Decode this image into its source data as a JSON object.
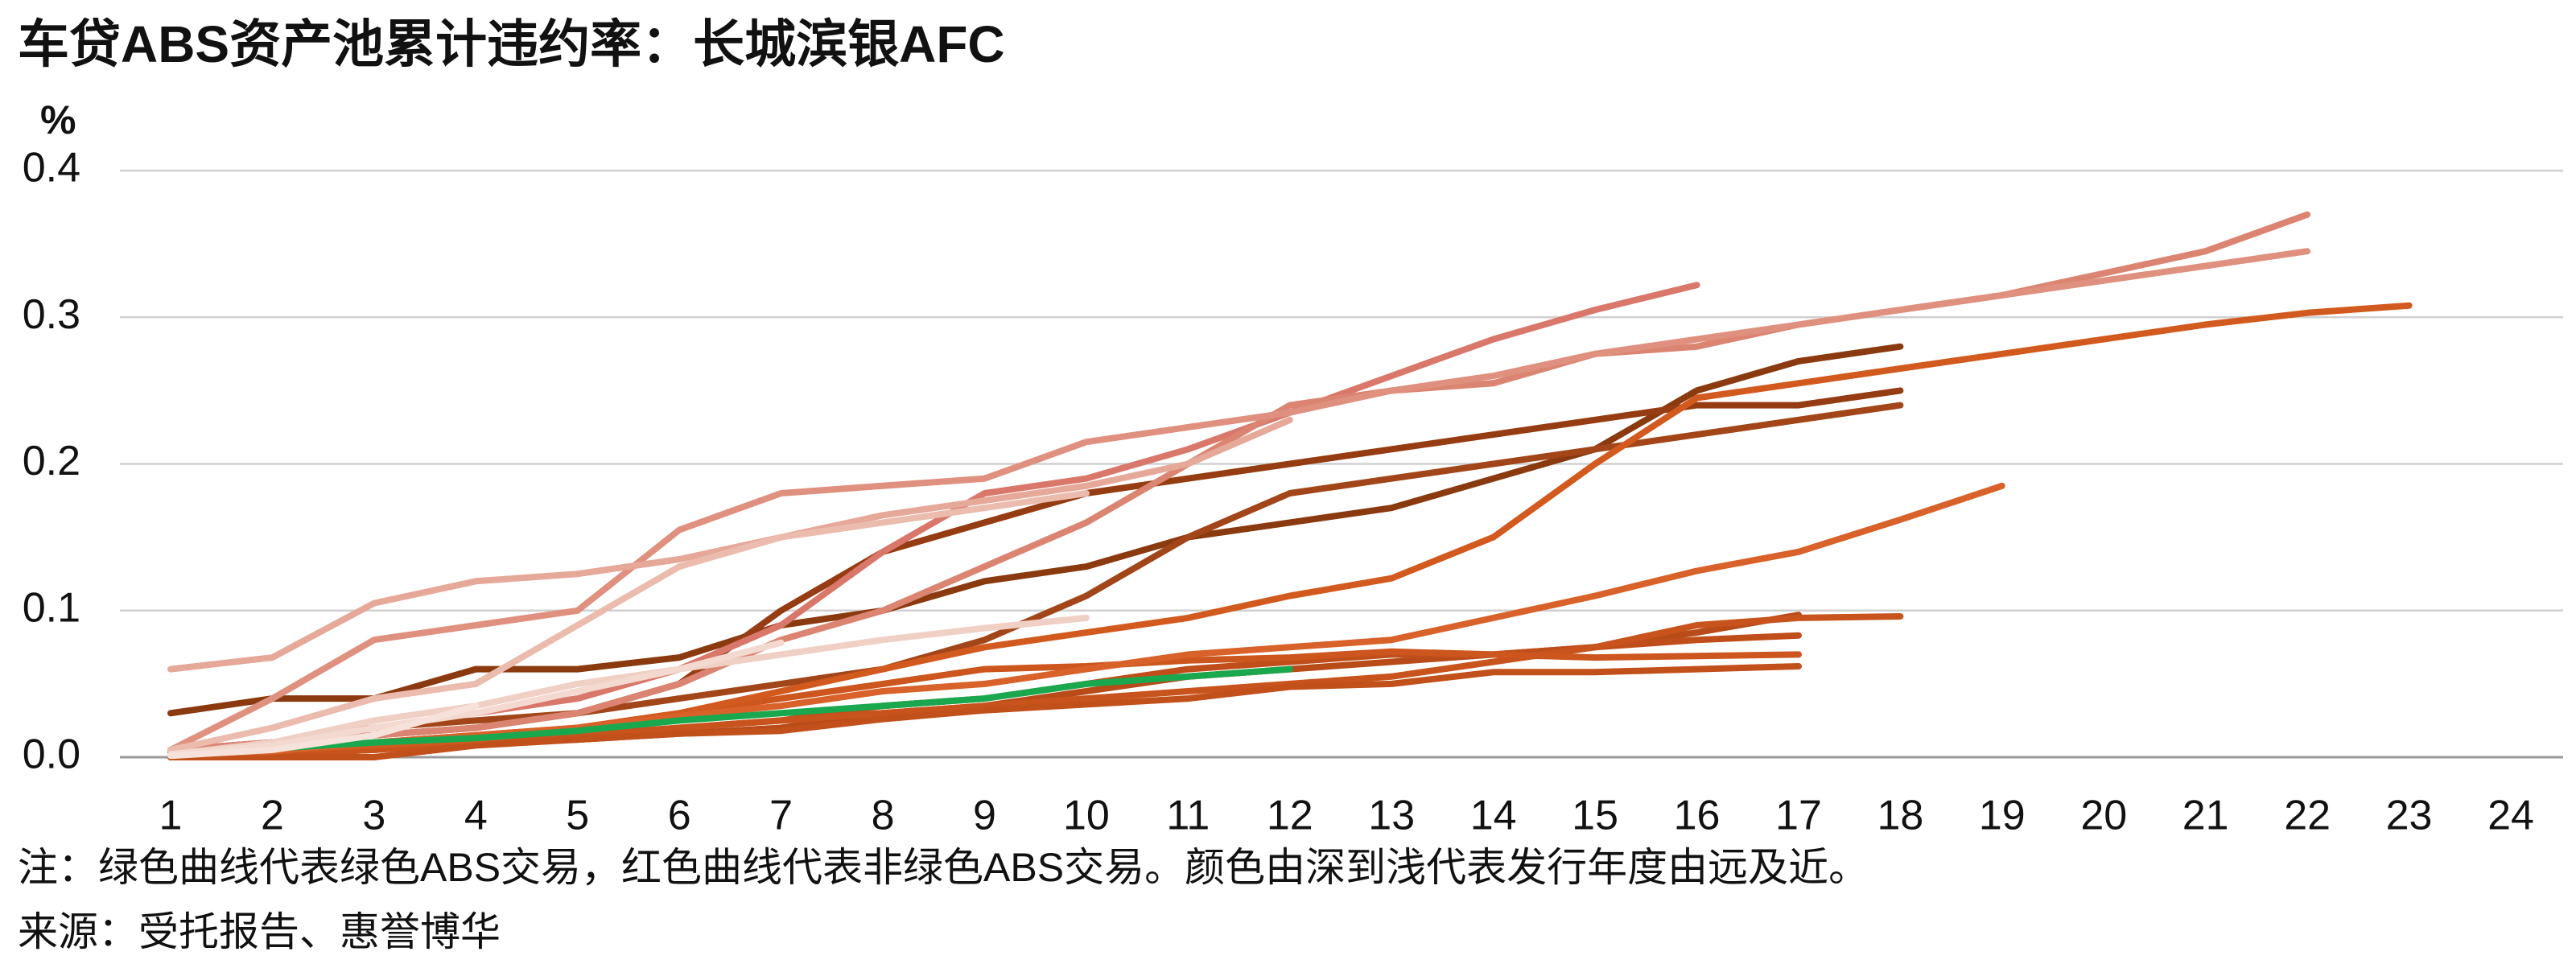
{
  "chart_data": {
    "type": "line",
    "title": "车贷ABS资产池累计违约率：长城滨银AFC",
    "y_unit": "%",
    "note": "注：绿色曲线代表绿色ABS交易，红色曲线代表非绿色ABS交易。颜色由深到浅代表发行年度由远及近。",
    "source": "来源：受托报告、惠誉博华",
    "categories": [
      1,
      2,
      3,
      4,
      5,
      6,
      7,
      8,
      9,
      10,
      11,
      12,
      13,
      14,
      15,
      16,
      17,
      18,
      19,
      20,
      21,
      22,
      23,
      24
    ],
    "ylim": [
      0,
      0.4
    ],
    "yticks": [
      {
        "value": 0,
        "label": "0.0"
      },
      0.1,
      0.2,
      0.3,
      0.4
    ],
    "grid": true,
    "series": [
      {
        "color": "#8b3a10",
        "values": [
          0.03,
          0.04,
          0.04,
          0.06,
          0.06,
          0.068,
          0.09,
          0.1,
          0.12,
          0.13,
          0.15,
          0.16,
          0.17,
          0.19,
          0.21,
          0.25,
          0.27,
          0.28,
          null,
          null,
          null,
          null,
          null,
          null
        ]
      },
      {
        "color": "#963c12",
        "values": [
          0.005,
          0.01,
          0.015,
          0.02,
          0.03,
          0.05,
          0.1,
          0.14,
          0.16,
          0.18,
          0.19,
          0.2,
          0.21,
          0.22,
          0.23,
          0.24,
          0.24,
          0.25,
          null,
          null,
          null,
          null,
          null,
          null
        ]
      },
      {
        "color": "#a2461a",
        "values": [
          0.005,
          0.01,
          0.02,
          0.025,
          0.03,
          0.04,
          0.05,
          0.06,
          0.08,
          0.11,
          0.15,
          0.18,
          0.19,
          0.2,
          0.21,
          0.22,
          0.23,
          0.24,
          null,
          null,
          null,
          null,
          null,
          null
        ]
      },
      {
        "color": "#b84b18",
        "values": [
          0,
          0.002,
          0.005,
          0.01,
          0.012,
          0.016,
          0.02,
          0.03,
          0.035,
          0.045,
          0.055,
          0.06,
          0.065,
          0.07,
          0.075,
          0.085,
          0.097,
          null,
          null,
          null,
          null,
          null,
          null,
          null
        ]
      },
      {
        "color": "#c04e1a",
        "values": [
          0,
          0.003,
          0.006,
          0.01,
          0.015,
          0.02,
          0.025,
          0.035,
          0.04,
          0.05,
          0.06,
          0.065,
          0.07,
          0.07,
          0.075,
          0.08,
          0.083,
          null,
          null,
          null,
          null,
          null,
          null,
          null
        ]
      },
      {
        "color": "#c9531c",
        "values": [
          0,
          0.002,
          0.005,
          0.01,
          0.015,
          0.02,
          0.025,
          0.03,
          0.035,
          0.04,
          0.045,
          0.05,
          0.055,
          0.065,
          0.075,
          0.09,
          0.095,
          0.096,
          null,
          null,
          null,
          null,
          null,
          null
        ]
      },
      {
        "color": "#c2501b",
        "values": [
          0,
          0,
          0,
          0.008,
          0.012,
          0.016,
          0.018,
          0.026,
          0.032,
          0.036,
          0.04,
          0.048,
          0.05,
          0.058,
          0.058,
          0.06,
          0.062,
          null,
          null,
          null,
          null,
          null,
          null,
          null
        ]
      },
      {
        "color": "#cc561d",
        "values": [
          0.002,
          0.005,
          0.01,
          0.015,
          0.02,
          0.03,
          0.04,
          0.05,
          0.06,
          0.062,
          0.066,
          0.068,
          0.072,
          0.07,
          0.068,
          0.069,
          0.07,
          null,
          null,
          null,
          null,
          null,
          null,
          null
        ]
      },
      {
        "color": "#d35a1e",
        "values": [
          0.003,
          0.005,
          0.008,
          0.012,
          0.02,
          0.03,
          0.045,
          0.06,
          0.075,
          0.085,
          0.095,
          0.11,
          0.122,
          0.15,
          0.2,
          0.245,
          0.255,
          0.265,
          0.275,
          0.285,
          0.295,
          0.303,
          0.308,
          null
        ]
      },
      {
        "color": "#d8622a",
        "values": [
          0.002,
          0.004,
          0.01,
          0.015,
          0.02,
          0.028,
          0.035,
          0.045,
          0.05,
          0.06,
          0.07,
          0.075,
          0.08,
          0.095,
          0.11,
          0.127,
          0.14,
          0.162,
          0.185,
          null,
          null,
          null,
          null,
          null
        ]
      },
      {
        "color": "#1aa84f",
        "values": [
          0.003,
          0.006,
          0.01,
          0.013,
          0.018,
          0.025,
          0.03,
          0.035,
          0.04,
          0.05,
          0.055,
          0.06,
          null,
          null,
          null,
          null,
          null,
          null,
          null,
          null,
          null,
          null,
          null,
          null
        ]
      },
      {
        "color": "#d9786a",
        "values": [
          0.005,
          0.01,
          0.02,
          0.03,
          0.04,
          0.06,
          0.09,
          0.14,
          0.18,
          0.19,
          0.21,
          0.235,
          0.26,
          0.285,
          0.305,
          0.322,
          null,
          null,
          null,
          null,
          null,
          null,
          null,
          null
        ]
      },
      {
        "color": "#db8472",
        "values": [
          0.005,
          0.01,
          0.015,
          0.02,
          0.03,
          0.05,
          0.08,
          0.1,
          0.13,
          0.16,
          0.2,
          0.24,
          0.25,
          0.255,
          0.275,
          0.28,
          0.295,
          0.305,
          0.315,
          0.33,
          0.345,
          0.37,
          null,
          null
        ]
      },
      {
        "color": "#e0907e",
        "values": [
          0.005,
          0.04,
          0.08,
          0.09,
          0.1,
          0.155,
          0.18,
          0.185,
          0.19,
          0.215,
          0.225,
          0.235,
          0.25,
          0.26,
          0.275,
          0.285,
          0.295,
          0.305,
          0.315,
          0.325,
          0.335,
          0.345,
          null,
          null
        ]
      },
      {
        "color": "#e6a898",
        "values": [
          0.06,
          0.068,
          0.105,
          0.12,
          0.125,
          0.135,
          0.15,
          0.165,
          0.175,
          0.185,
          0.2,
          0.23,
          null,
          null,
          null,
          null,
          null,
          null,
          null,
          null,
          null,
          null,
          null,
          null
        ]
      },
      {
        "color": "#ebbcae",
        "values": [
          0.005,
          0.02,
          0.04,
          0.05,
          0.09,
          0.13,
          0.15,
          0.16,
          0.17,
          0.18,
          null,
          null,
          null,
          null,
          null,
          null,
          null,
          null,
          null,
          null,
          null,
          null,
          null,
          null
        ]
      },
      {
        "color": "#f0cfc5",
        "values": [
          0.002,
          0.01,
          0.025,
          0.035,
          0.05,
          0.06,
          0.07,
          0.08,
          0.088,
          0.095,
          null,
          null,
          null,
          null,
          null,
          null,
          null,
          null,
          null,
          null,
          null,
          null,
          null,
          null
        ]
      },
      {
        "color": "#f3d9d0",
        "values": [
          0.002,
          0.008,
          0.02,
          0.03,
          0.045,
          0.06,
          0.078,
          null,
          null,
          null,
          null,
          null,
          null,
          null,
          null,
          null,
          null,
          null,
          null,
          null,
          null,
          null,
          null,
          null
        ]
      },
      {
        "color": "#f6e2da",
        "values": [
          0.001,
          0.005,
          0.015,
          0.035,
          null,
          null,
          null,
          null,
          null,
          null,
          null,
          null,
          null,
          null,
          null,
          null,
          null,
          null,
          null,
          null,
          null,
          null,
          null,
          null
        ]
      }
    ]
  }
}
